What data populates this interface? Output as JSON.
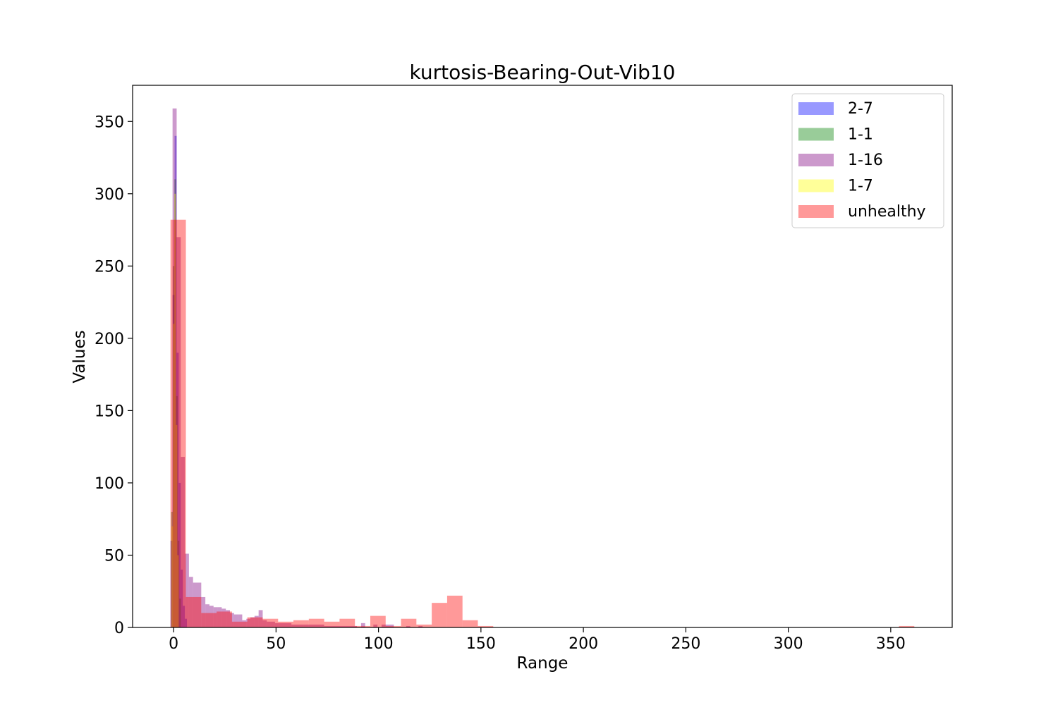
{
  "chart_data": {
    "type": "bar",
    "title": "kurtosis-Bearing-Out-Vib10",
    "xlabel": "Range",
    "ylabel": "Values",
    "xlim": [
      -20,
      380
    ],
    "ylim": [
      0,
      375
    ],
    "xticks": [
      0,
      50,
      100,
      150,
      200,
      250,
      300,
      350
    ],
    "yticks": [
      0,
      50,
      100,
      150,
      200,
      250,
      300,
      350
    ],
    "legend_position": "top-right",
    "grid": false,
    "series": [
      {
        "name": "2-7",
        "color": "#0000ff",
        "opacity": 0.4,
        "bins": [
          {
            "x0": -1.5,
            "x1": -0.5,
            "value": 60
          },
          {
            "x0": -0.5,
            "x1": 0.5,
            "value": 230
          },
          {
            "x0": 0.5,
            "x1": 1.5,
            "value": 340
          },
          {
            "x0": 1.5,
            "x1": 2.5,
            "value": 190
          },
          {
            "x0": 2.5,
            "x1": 3.5,
            "value": 100
          },
          {
            "x0": 3.5,
            "x1": 4.5,
            "value": 40
          },
          {
            "x0": 4.5,
            "x1": 5.5,
            "value": 15
          },
          {
            "x0": 5.5,
            "x1": 6.5,
            "value": 6
          }
        ]
      },
      {
        "name": "1-1",
        "color": "#008000",
        "opacity": 0.4,
        "bins": [
          {
            "x0": -1.2,
            "x1": -0.4,
            "value": 80
          },
          {
            "x0": -0.4,
            "x1": 0.4,
            "value": 250
          },
          {
            "x0": 0.4,
            "x1": 1.2,
            "value": 310
          },
          {
            "x0": 1.2,
            "x1": 2.0,
            "value": 160
          },
          {
            "x0": 2.0,
            "x1": 2.8,
            "value": 60
          },
          {
            "x0": 2.8,
            "x1": 3.6,
            "value": 20
          }
        ]
      },
      {
        "name": "1-16",
        "color": "#800080",
        "opacity": 0.4,
        "bins": [
          {
            "x0": -0.5,
            "x1": 1.5,
            "value": 359
          },
          {
            "x0": 1.5,
            "x1": 3.5,
            "value": 270
          },
          {
            "x0": 3.5,
            "x1": 5.5,
            "value": 118
          },
          {
            "x0": 5.5,
            "x1": 7.5,
            "value": 51
          },
          {
            "x0": 7.5,
            "x1": 9.5,
            "value": 35
          },
          {
            "x0": 9.5,
            "x1": 11.5,
            "value": 31
          },
          {
            "x0": 11.5,
            "x1": 13.5,
            "value": 31
          },
          {
            "x0": 13.5,
            "x1": 15.5,
            "value": 21
          },
          {
            "x0": 15.5,
            "x1": 17.5,
            "value": 16
          },
          {
            "x0": 17.5,
            "x1": 19.5,
            "value": 15
          },
          {
            "x0": 19.5,
            "x1": 21.5,
            "value": 14
          },
          {
            "x0": 21.5,
            "x1": 23.5,
            "value": 14
          },
          {
            "x0": 23.5,
            "x1": 25.5,
            "value": 13
          },
          {
            "x0": 25.5,
            "x1": 27.5,
            "value": 12
          },
          {
            "x0": 27.5,
            "x1": 29.5,
            "value": 10
          },
          {
            "x0": 29.5,
            "x1": 31.5,
            "value": 9
          },
          {
            "x0": 31.5,
            "x1": 33.5,
            "value": 9
          },
          {
            "x0": 33.5,
            "x1": 35.5,
            "value": 5
          },
          {
            "x0": 35.5,
            "x1": 37.5,
            "value": 6
          },
          {
            "x0": 37.5,
            "x1": 39.5,
            "value": 7
          },
          {
            "x0": 39.5,
            "x1": 41.5,
            "value": 8
          },
          {
            "x0": 41.5,
            "x1": 43.5,
            "value": 12
          },
          {
            "x0": 43.5,
            "x1": 45.5,
            "value": 5
          },
          {
            "x0": 45.5,
            "x1": 49.5,
            "value": 4
          },
          {
            "x0": 49.5,
            "x1": 53.5,
            "value": 3
          },
          {
            "x0": 53.5,
            "x1": 57.5,
            "value": 3
          },
          {
            "x0": 57.5,
            "x1": 63.5,
            "value": 2
          },
          {
            "x0": 63.5,
            "x1": 73.5,
            "value": 2
          },
          {
            "x0": 73.5,
            "x1": 89.5,
            "value": 1
          },
          {
            "x0": 91.5,
            "x1": 93.5,
            "value": 3
          },
          {
            "x0": 97.5,
            "x1": 99.5,
            "value": 2
          },
          {
            "x0": 101.5,
            "x1": 107.5,
            "value": 2
          },
          {
            "x0": 113.5,
            "x1": 115.5,
            "value": 1
          },
          {
            "x0": 119.5,
            "x1": 121.5,
            "value": 1
          }
        ]
      },
      {
        "name": "1-7",
        "color": "#ffff00",
        "opacity": 0.4,
        "bins": [
          {
            "x0": -1.0,
            "x1": -0.3,
            "value": 70
          },
          {
            "x0": -0.3,
            "x1": 0.4,
            "value": 210
          },
          {
            "x0": 0.4,
            "x1": 1.1,
            "value": 300
          },
          {
            "x0": 1.1,
            "x1": 1.8,
            "value": 140
          },
          {
            "x0": 1.8,
            "x1": 2.5,
            "value": 50
          }
        ]
      },
      {
        "name": "unhealthy",
        "color": "#ff0000",
        "opacity": 0.4,
        "bins": [
          {
            "x0": -1.5,
            "x1": 6.0,
            "value": 282
          },
          {
            "x0": 6.0,
            "x1": 13.5,
            "value": 21
          },
          {
            "x0": 13.5,
            "x1": 21.0,
            "value": 10
          },
          {
            "x0": 21.0,
            "x1": 28.5,
            "value": 11
          },
          {
            "x0": 28.5,
            "x1": 36.0,
            "value": 4
          },
          {
            "x0": 36.0,
            "x1": 43.5,
            "value": 7
          },
          {
            "x0": 43.5,
            "x1": 51.0,
            "value": 6
          },
          {
            "x0": 51.0,
            "x1": 58.5,
            "value": 4
          },
          {
            "x0": 58.5,
            "x1": 66.0,
            "value": 5
          },
          {
            "x0": 66.0,
            "x1": 73.5,
            "value": 6
          },
          {
            "x0": 73.5,
            "x1": 81.0,
            "value": 4
          },
          {
            "x0": 81.0,
            "x1": 88.5,
            "value": 6
          },
          {
            "x0": 88.5,
            "x1": 96.0,
            "value": 1
          },
          {
            "x0": 96.0,
            "x1": 103.5,
            "value": 8
          },
          {
            "x0": 103.5,
            "x1": 111.0,
            "value": 1
          },
          {
            "x0": 111.0,
            "x1": 118.5,
            "value": 6
          },
          {
            "x0": 118.5,
            "x1": 126.0,
            "value": 2
          },
          {
            "x0": 126.0,
            "x1": 133.5,
            "value": 17
          },
          {
            "x0": 133.5,
            "x1": 141.0,
            "value": 22
          },
          {
            "x0": 141.0,
            "x1": 148.5,
            "value": 5
          },
          {
            "x0": 148.5,
            "x1": 156.0,
            "value": 1
          },
          {
            "x0": 354.0,
            "x1": 361.5,
            "value": 1
          }
        ]
      }
    ]
  }
}
